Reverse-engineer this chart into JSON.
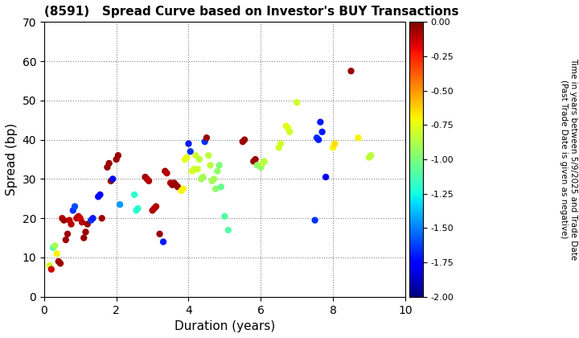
{
  "title": "(8591)   Spread Curve based on Investor's BUY Transactions",
  "xlabel": "Duration (years)",
  "ylabel": "Spread (bp)",
  "colorbar_label_line1": "Time in years between 5/9/2025 and Trade Date",
  "colorbar_label_line2": "(Past Trade Date is given as negative)",
  "xlim": [
    0,
    10
  ],
  "ylim": [
    0,
    70
  ],
  "xticks": [
    0,
    2,
    4,
    6,
    8,
    10
  ],
  "yticks": [
    0,
    10,
    20,
    30,
    40,
    50,
    60,
    70
  ],
  "cmap_vmin": -2.0,
  "cmap_vmax": 0.0,
  "marker_size": 36,
  "points": [
    [
      0.15,
      8.0,
      -0.8
    ],
    [
      0.2,
      7.0,
      -0.15
    ],
    [
      0.25,
      12.5,
      -1.1
    ],
    [
      0.3,
      13.0,
      -0.9
    ],
    [
      0.35,
      11.0,
      -0.7
    ],
    [
      0.4,
      9.0,
      -0.05
    ],
    [
      0.45,
      8.5,
      -0.05
    ],
    [
      0.5,
      20.0,
      -0.1
    ],
    [
      0.55,
      19.5,
      -0.05
    ],
    [
      0.6,
      14.5,
      -0.05
    ],
    [
      0.65,
      16.0,
      -0.05
    ],
    [
      0.7,
      19.5,
      -0.1
    ],
    [
      0.75,
      18.5,
      -0.1
    ],
    [
      0.8,
      22.0,
      -1.65
    ],
    [
      0.85,
      23.0,
      -1.6
    ],
    [
      0.9,
      20.0,
      -0.1
    ],
    [
      0.95,
      20.5,
      -0.1
    ],
    [
      1.0,
      20.0,
      -0.15
    ],
    [
      1.05,
      19.0,
      -0.1
    ],
    [
      1.1,
      15.0,
      -0.05
    ],
    [
      1.15,
      16.5,
      -0.05
    ],
    [
      1.2,
      18.5,
      -0.05
    ],
    [
      1.3,
      19.5,
      -1.65
    ],
    [
      1.35,
      20.0,
      -1.7
    ],
    [
      1.5,
      25.5,
      -1.75
    ],
    [
      1.55,
      26.0,
      -1.75
    ],
    [
      1.6,
      20.0,
      -0.05
    ],
    [
      1.75,
      33.0,
      -0.05
    ],
    [
      1.8,
      34.0,
      -0.05
    ],
    [
      1.85,
      29.5,
      -0.05
    ],
    [
      1.9,
      30.0,
      -1.75
    ],
    [
      2.0,
      35.0,
      -0.05
    ],
    [
      2.05,
      36.0,
      -0.05
    ],
    [
      2.1,
      23.5,
      -1.45
    ],
    [
      2.5,
      26.0,
      -1.2
    ],
    [
      2.55,
      22.0,
      -1.2
    ],
    [
      2.6,
      22.5,
      -1.2
    ],
    [
      2.8,
      30.5,
      -0.05
    ],
    [
      2.85,
      30.0,
      -0.1
    ],
    [
      2.9,
      29.5,
      -0.1
    ],
    [
      3.0,
      22.0,
      -0.1
    ],
    [
      3.05,
      22.5,
      -0.1
    ],
    [
      3.1,
      23.0,
      -0.1
    ],
    [
      3.2,
      16.0,
      -0.05
    ],
    [
      3.3,
      14.0,
      -1.7
    ],
    [
      3.35,
      32.0,
      -0.05
    ],
    [
      3.4,
      31.5,
      -0.1
    ],
    [
      3.5,
      29.0,
      -0.1
    ],
    [
      3.55,
      28.5,
      -0.05
    ],
    [
      3.6,
      29.0,
      -0.05
    ],
    [
      3.65,
      28.5,
      -0.05
    ],
    [
      3.7,
      28.0,
      -0.05
    ],
    [
      3.8,
      27.0,
      -0.7
    ],
    [
      3.85,
      27.5,
      -0.7
    ],
    [
      3.9,
      35.0,
      -0.75
    ],
    [
      3.95,
      35.5,
      -0.75
    ],
    [
      4.0,
      39.0,
      -1.7
    ],
    [
      4.05,
      37.0,
      -1.65
    ],
    [
      4.1,
      32.0,
      -0.75
    ],
    [
      4.15,
      32.5,
      -0.8
    ],
    [
      4.2,
      36.0,
      -0.8
    ],
    [
      4.25,
      32.5,
      -0.8
    ],
    [
      4.3,
      35.0,
      -0.85
    ],
    [
      4.35,
      30.0,
      -0.9
    ],
    [
      4.4,
      30.5,
      -0.9
    ],
    [
      4.45,
      39.5,
      -1.65
    ],
    [
      4.5,
      40.5,
      -0.05
    ],
    [
      4.55,
      36.0,
      -0.85
    ],
    [
      4.6,
      33.5,
      -0.85
    ],
    [
      4.65,
      29.5,
      -0.9
    ],
    [
      4.7,
      30.0,
      -0.9
    ],
    [
      4.75,
      27.5,
      -0.95
    ],
    [
      4.8,
      32.0,
      -0.95
    ],
    [
      4.85,
      33.5,
      -1.0
    ],
    [
      4.9,
      28.0,
      -1.05
    ],
    [
      5.0,
      20.5,
      -1.1
    ],
    [
      5.1,
      17.0,
      -1.1
    ],
    [
      5.5,
      39.5,
      -0.05
    ],
    [
      5.55,
      40.0,
      -0.05
    ],
    [
      5.8,
      34.5,
      -0.05
    ],
    [
      5.85,
      35.0,
      -0.05
    ],
    [
      5.9,
      33.5,
      -0.95
    ],
    [
      6.0,
      33.0,
      -0.95
    ],
    [
      6.05,
      34.0,
      -0.85
    ],
    [
      6.1,
      34.5,
      -0.85
    ],
    [
      6.5,
      38.0,
      -0.8
    ],
    [
      6.55,
      39.0,
      -0.8
    ],
    [
      6.7,
      43.5,
      -0.75
    ],
    [
      6.75,
      43.0,
      -0.75
    ],
    [
      6.8,
      42.0,
      -0.8
    ],
    [
      7.0,
      49.5,
      -0.8
    ],
    [
      7.5,
      19.5,
      -1.65
    ],
    [
      7.55,
      40.5,
      -1.65
    ],
    [
      7.6,
      40.0,
      -1.7
    ],
    [
      7.65,
      44.5,
      -1.7
    ],
    [
      7.7,
      42.0,
      -1.7
    ],
    [
      7.8,
      30.5,
      -1.8
    ],
    [
      8.0,
      38.0,
      -0.7
    ],
    [
      8.05,
      39.0,
      -0.65
    ],
    [
      8.5,
      57.5,
      -0.05
    ],
    [
      8.7,
      40.5,
      -0.7
    ],
    [
      9.0,
      35.5,
      -0.85
    ],
    [
      9.05,
      36.0,
      -0.85
    ]
  ]
}
